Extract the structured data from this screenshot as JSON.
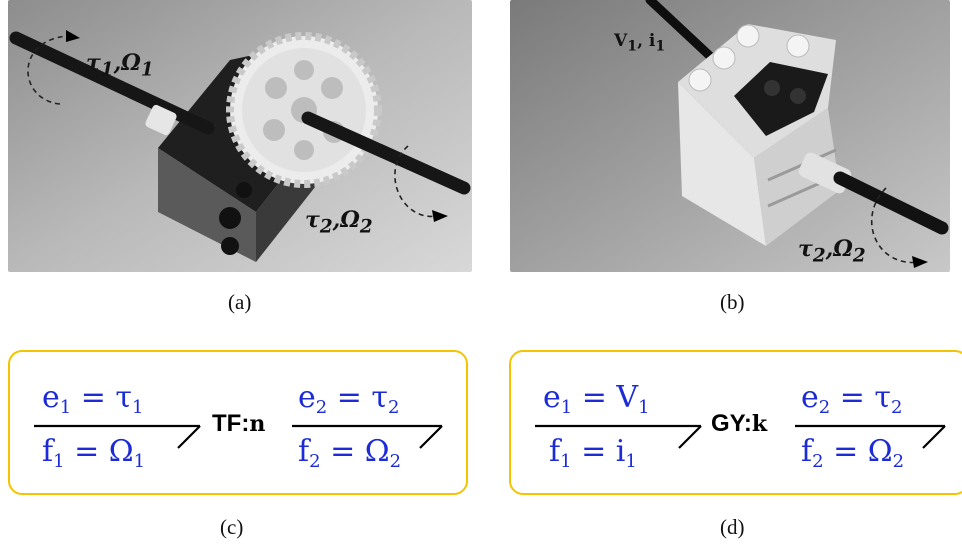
{
  "photos": {
    "a": {
      "input_label": "τ1,Ω1",
      "output_label": "τ2,Ω2",
      "caption": "(a)"
    },
    "b": {
      "input_label": "V1, i1",
      "output_label": "τ2,Ω2",
      "caption": "(b)"
    }
  },
  "bondgraphs": {
    "c": {
      "left_effort": "e1 = τ1",
      "left_flow": "f1 = Ω1",
      "element": "TF:",
      "parameter": "n",
      "right_effort": "e2 = τ2",
      "right_flow": "f2 = Ω2",
      "caption": "(c)"
    },
    "d": {
      "left_effort": "e1 = V1",
      "left_flow": "f1 = i1",
      "element": "GY:",
      "parameter": "k",
      "right_effort": "e2 = τ2",
      "right_flow": "f2 = Ω2",
      "caption": "(d)"
    }
  },
  "colors": {
    "equation_text": "#1c2bd6",
    "panel_border": "#f2c500"
  }
}
